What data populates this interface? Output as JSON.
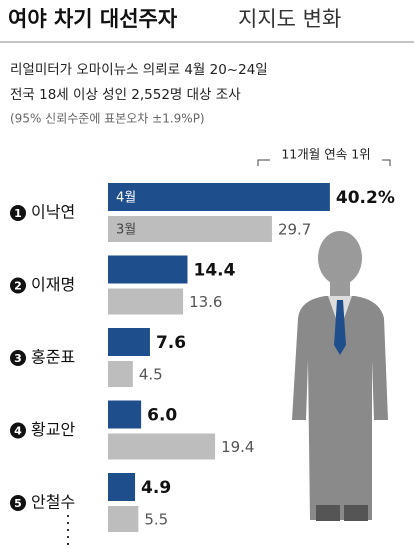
{
  "chart_data": {
    "type": "bar",
    "title": [
      "여야 차기 대선주자",
      "지지도 변화"
    ],
    "subtitle": [
      "리얼미터가 오마이뉴스 의뢰로 4월 20~24일",
      "전국 18세 이상 성인 2,552명 대상 조사",
      "(95% 신뢰수준에 표본오차 ±1.9%P)"
    ],
    "annotation": "11개월 연속 1위",
    "ranks": [
      "1",
      "2",
      "3",
      "4",
      "5"
    ],
    "categories": [
      "이낙연",
      "이재명",
      "홍준표",
      "황교안",
      "안철수"
    ],
    "series": [
      {
        "name": "4월",
        "color": "#1f4e8c",
        "values": [
          40.2,
          14.4,
          7.6,
          6.0,
          4.9
        ],
        "value_labels": [
          "40.2%",
          "14.4",
          "7.6",
          "6.0",
          "4.9"
        ]
      },
      {
        "name": "3월",
        "color": "#bdbdbd",
        "values": [
          29.7,
          13.6,
          4.5,
          19.4,
          5.5
        ],
        "value_labels": [
          "29.7",
          "13.6",
          "4.5",
          "19.4",
          "5.5"
        ]
      }
    ]
  }
}
